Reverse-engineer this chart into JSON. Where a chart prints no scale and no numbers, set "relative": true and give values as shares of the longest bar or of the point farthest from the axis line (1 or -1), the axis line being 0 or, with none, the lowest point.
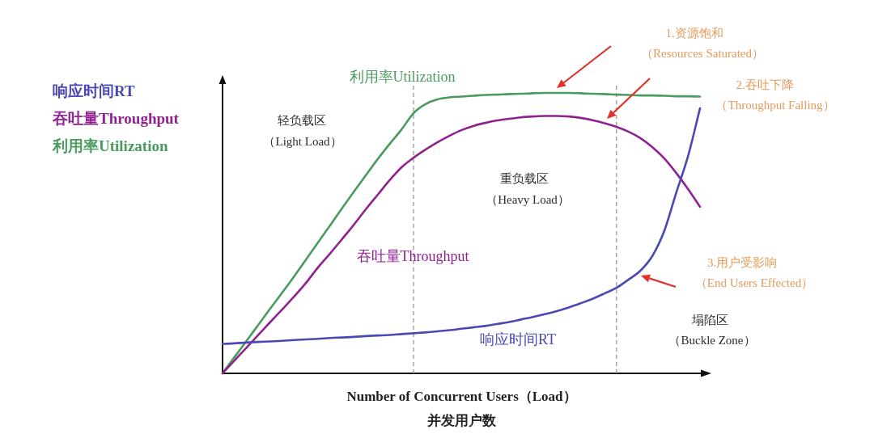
{
  "chart_data": {
    "type": "line",
    "relative": true,
    "categories": [
      null,
      null,
      null,
      null,
      null,
      null,
      null,
      null,
      null,
      null,
      null,
      null,
      null,
      null,
      null,
      null,
      null,
      null,
      null,
      null,
      null,
      null,
      null,
      null,
      null,
      null,
      null,
      null,
      null,
      null,
      null,
      null,
      null,
      null,
      null,
      null,
      null,
      null,
      null,
      null,
      null
    ],
    "series": [
      {
        "name": "响应时间RT",
        "color": "#4a48b4",
        "values": [
          0.105,
          0.107,
          0.11,
          0.112,
          0.114,
          0.116,
          0.119,
          0.121,
          0.123,
          0.126,
          0.128,
          0.13,
          0.133,
          0.135,
          0.137,
          0.14,
          0.143,
          0.146,
          0.15,
          0.154,
          0.159,
          0.164,
          0.169,
          0.176,
          0.183,
          0.192,
          0.201,
          0.211,
          0.222,
          0.235,
          0.25,
          0.266,
          0.285,
          0.305,
          0.334,
          0.366,
          0.418,
          0.507,
          0.643,
          0.775,
          0.945
        ]
      },
      {
        "name": "吞吐量Throughput",
        "color": "#8e2390",
        "values": [
          0,
          0.046,
          0.091,
          0.137,
          0.183,
          0.228,
          0.274,
          0.323,
          0.378,
          0.427,
          0.478,
          0.53,
          0.585,
          0.637,
          0.689,
          0.735,
          0.769,
          0.798,
          0.824,
          0.847,
          0.867,
          0.882,
          0.893,
          0.902,
          0.908,
          0.913,
          0.916,
          0.918,
          0.918,
          0.916,
          0.911,
          0.903,
          0.892,
          0.879,
          0.862,
          0.839,
          0.807,
          0.767,
          0.715,
          0.657,
          0.594
        ]
      },
      {
        "name": "利用率Utilization",
        "color": "#4b9a5e",
        "values": [
          0,
          0.058,
          0.115,
          0.173,
          0.231,
          0.288,
          0.346,
          0.406,
          0.467,
          0.527,
          0.588,
          0.648,
          0.706,
          0.764,
          0.818,
          0.87,
          0.928,
          0.96,
          0.977,
          0.984,
          0.987,
          0.99,
          0.993,
          0.994,
          0.996,
          0.997,
          0.999,
          1,
          1,
          1,
          0.999,
          0.997,
          0.996,
          0.994,
          0.993,
          0.991,
          0.991,
          0.99,
          0.988,
          0.988,
          0.987
        ]
      }
    ],
    "xlabel": "Number of Concurrent Users（Load）并发用户数",
    "annotations": [
      "轻负载区",
      "（Light Load）",
      "重负载区",
      "（Heavy Load）",
      "塌陷区",
      "（Buckle Zone）",
      "1.资源饱和",
      "（Resources Saturated）",
      "2.吞吐下降",
      "（Throughput Falling）",
      "3.用户受影响",
      "（End Users Effected）"
    ],
    "legend": "left",
    "grid": false,
    "marker": "none",
    "line_style": "solid",
    "tick_labels": false
  }
}
